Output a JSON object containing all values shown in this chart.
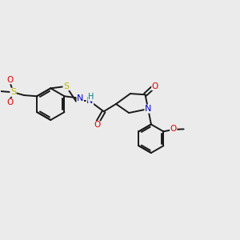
{
  "bg_color": "#ebebeb",
  "bond_color": "#1a1a1a",
  "line_width": 1.4,
  "atom_colors": {
    "S": "#b8b800",
    "N": "#0000cc",
    "O": "#dd0000",
    "C": "#1a1a1a",
    "H": "#008080"
  }
}
